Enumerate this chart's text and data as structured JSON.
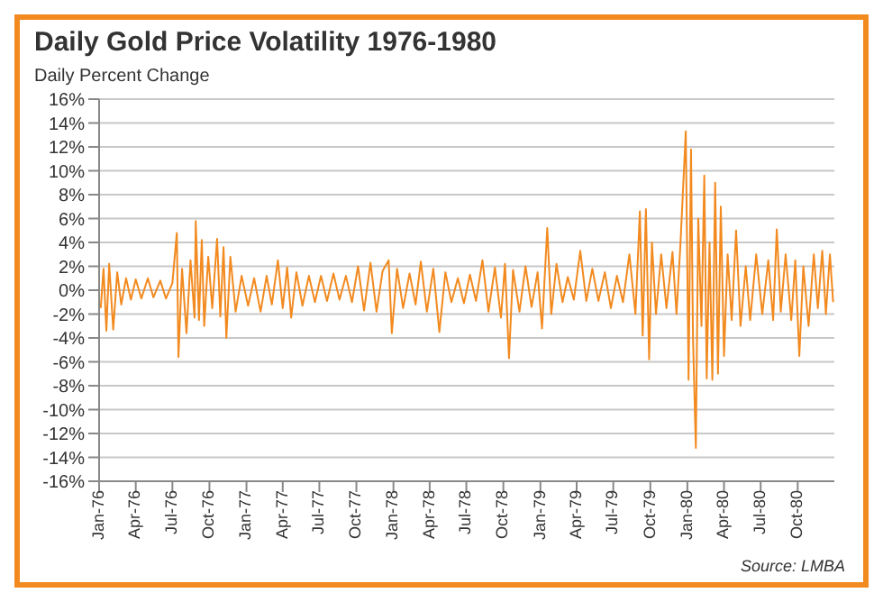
{
  "chart_data": {
    "type": "line",
    "title": "Daily Gold Price Volatility 1976-1980",
    "ylabel": "Daily Percent Change",
    "annotations": [
      "Source: LMBA"
    ],
    "grid": "y",
    "marker": "none",
    "line_style": "solid",
    "xlim": [
      "1976-01-01",
      "1980-12-31"
    ],
    "xticks": [
      {
        "value": "1976-01-01",
        "label": "Jan-76"
      },
      {
        "value": "1976-04-01",
        "label": "Apr-76"
      },
      {
        "value": "1976-07-01",
        "label": "Jul-76"
      },
      {
        "value": "1976-10-01",
        "label": "Oct-76"
      },
      {
        "value": "1977-01-01",
        "label": "Jan-77"
      },
      {
        "value": "1977-04-01",
        "label": "Apr-77"
      },
      {
        "value": "1977-07-01",
        "label": "Jul-77"
      },
      {
        "value": "1977-10-01",
        "label": "Oct-77"
      },
      {
        "value": "1978-01-01",
        "label": "Jan-78"
      },
      {
        "value": "1978-04-01",
        "label": "Apr-78"
      },
      {
        "value": "1978-07-01",
        "label": "Jul-78"
      },
      {
        "value": "1978-10-01",
        "label": "Oct-78"
      },
      {
        "value": "1979-01-01",
        "label": "Jan-79"
      },
      {
        "value": "1979-04-01",
        "label": "Apr-79"
      },
      {
        "value": "1979-07-01",
        "label": "Jul-79"
      },
      {
        "value": "1979-10-01",
        "label": "Oct-79"
      },
      {
        "value": "1980-01-01",
        "label": "Jan-80"
      },
      {
        "value": "1980-04-01",
        "label": "Apr-80"
      },
      {
        "value": "1980-07-01",
        "label": "Jul-80"
      },
      {
        "value": "1980-10-01",
        "label": "Oct-80"
      }
    ],
    "ylim": [
      -16,
      16
    ],
    "yticks": [
      {
        "value": -16,
        "label": "-16%"
      },
      {
        "value": -14,
        "label": "-14%"
      },
      {
        "value": -12,
        "label": "-12%"
      },
      {
        "value": -10,
        "label": "-10%"
      },
      {
        "value": -8,
        "label": "-8%"
      },
      {
        "value": -6,
        "label": "-6%"
      },
      {
        "value": -4,
        "label": "-4%"
      },
      {
        "value": -2,
        "label": "-2%"
      },
      {
        "value": 0,
        "label": "0%"
      },
      {
        "value": 2,
        "label": "2%"
      },
      {
        "value": 4,
        "label": "4%"
      },
      {
        "value": 6,
        "label": "6%"
      },
      {
        "value": 8,
        "label": "8%"
      },
      {
        "value": 10,
        "label": "10%"
      },
      {
        "value": 12,
        "label": "12%"
      },
      {
        "value": 14,
        "label": "14%"
      },
      {
        "value": 16,
        "label": "16%"
      }
    ],
    "x": [
      "1976-01-05",
      "1976-01-12",
      "1976-01-19",
      "1976-01-26",
      "1976-02-05",
      "1976-02-15",
      "1976-02-25",
      "1976-03-08",
      "1976-03-20",
      "1976-04-01",
      "1976-04-15",
      "1976-05-01",
      "1976-05-15",
      "1976-06-01",
      "1976-06-15",
      "1976-07-01",
      "1976-07-12",
      "1976-07-16",
      "1976-07-25",
      "1976-08-05",
      "1976-08-15",
      "1976-08-25",
      "1976-08-28",
      "1976-09-05",
      "1976-09-12",
      "1976-09-18",
      "1976-09-28",
      "1976-10-08",
      "1976-10-20",
      "1976-10-28",
      "1976-11-05",
      "1976-11-12",
      "1976-11-22",
      "1976-12-05",
      "1976-12-20",
      "1977-01-05",
      "1977-01-20",
      "1977-02-05",
      "1977-02-20",
      "1977-03-05",
      "1977-03-20",
      "1977-04-01",
      "1977-04-12",
      "1977-04-22",
      "1977-05-05",
      "1977-05-20",
      "1977-06-05",
      "1977-06-20",
      "1977-07-05",
      "1977-07-20",
      "1977-08-05",
      "1977-08-20",
      "1977-09-05",
      "1977-09-20",
      "1977-10-05",
      "1977-10-20",
      "1977-11-05",
      "1977-11-20",
      "1977-12-05",
      "1977-12-20",
      "1977-12-28",
      "1978-01-10",
      "1978-01-25",
      "1978-02-10",
      "1978-02-25",
      "1978-03-10",
      "1978-03-25",
      "1978-04-10",
      "1978-04-25",
      "1978-05-10",
      "1978-05-25",
      "1978-06-10",
      "1978-06-25",
      "1978-07-10",
      "1978-07-25",
      "1978-08-10",
      "1978-08-25",
      "1978-09-10",
      "1978-09-25",
      "1978-10-05",
      "1978-10-15",
      "1978-10-25",
      "1978-11-10",
      "1978-11-25",
      "1978-12-10",
      "1978-12-25",
      "1979-01-05",
      "1979-01-18",
      "1979-01-28",
      "1979-02-10",
      "1979-02-25",
      "1979-03-10",
      "1979-03-25",
      "1979-04-10",
      "1979-04-25",
      "1979-05-10",
      "1979-05-25",
      "1979-06-10",
      "1979-06-25",
      "1979-07-10",
      "1979-07-25",
      "1979-08-10",
      "1979-08-25",
      "1979-09-05",
      "1979-09-12",
      "1979-09-20",
      "1979-09-28",
      "1979-10-05",
      "1979-10-15",
      "1979-10-28",
      "1979-11-10",
      "1979-11-25",
      "1979-12-05",
      "1979-12-15",
      "1979-12-28",
      "1980-01-04",
      "1980-01-10",
      "1980-01-15",
      "1980-01-22",
      "1980-01-28",
      "1980-02-05",
      "1980-02-12",
      "1980-02-18",
      "1980-02-25",
      "1980-03-03",
      "1980-03-10",
      "1980-03-17",
      "1980-03-24",
      "1980-04-01",
      "1980-04-10",
      "1980-04-20",
      "1980-05-01",
      "1980-05-12",
      "1980-05-25",
      "1980-06-05",
      "1980-06-20",
      "1980-07-05",
      "1980-07-20",
      "1980-08-01",
      "1980-08-10",
      "1980-08-20",
      "1980-09-01",
      "1980-09-15",
      "1980-09-25",
      "1980-10-05",
      "1980-10-15",
      "1980-10-28",
      "1980-11-10",
      "1980-11-20",
      "1980-12-01",
      "1980-12-10",
      "1980-12-20",
      "1980-12-28"
    ],
    "series": [
      {
        "color": "#f28a1f",
        "values": [
          -1.5,
          1.8,
          -3.4,
          2.2,
          -3.3,
          1.5,
          -1.2,
          1.0,
          -0.8,
          0.9,
          -0.7,
          1.0,
          -0.6,
          0.8,
          -0.7,
          0.6,
          4.8,
          -5.6,
          1.8,
          -3.6,
          2.5,
          -2.3,
          5.8,
          -2.5,
          4.2,
          -3.0,
          2.8,
          -1.5,
          4.3,
          -2.2,
          3.6,
          -4.0,
          2.8,
          -1.8,
          1.2,
          -1.3,
          1.0,
          -1.8,
          1.2,
          -1.2,
          2.5,
          -1.5,
          1.9,
          -2.3,
          1.5,
          -1.3,
          1.2,
          -1.0,
          1.2,
          -0.9,
          1.4,
          -0.8,
          1.2,
          -1.0,
          2.0,
          -1.7,
          2.3,
          -1.8,
          1.6,
          2.5,
          -3.6,
          1.8,
          -1.5,
          1.4,
          -1.2,
          2.4,
          -1.8,
          1.8,
          -3.5,
          1.5,
          -1.0,
          1.0,
          -1.1,
          1.3,
          -0.9,
          2.5,
          -1.8,
          1.9,
          -2.3,
          2.2,
          -5.7,
          1.7,
          -1.8,
          2.0,
          -1.4,
          1.5,
          -3.2,
          5.2,
          -2.0,
          2.2,
          -1.0,
          1.1,
          -0.8,
          3.3,
          -0.9,
          1.8,
          -0.9,
          1.5,
          -1.5,
          1.2,
          -1.0,
          3.0,
          -2.0,
          6.6,
          -3.8,
          6.8,
          -5.8,
          4.0,
          -2.0,
          3.0,
          -1.5,
          3.2,
          -2.0,
          4.0,
          13.3,
          -7.5,
          11.8,
          -4.0,
          -13.2,
          6.0,
          -3.0,
          9.6,
          -7.4,
          4.0,
          -7.5,
          9.0,
          -7.0,
          7.0,
          -5.5,
          3.0,
          -2.5,
          5.0,
          -3.0,
          2.0,
          -2.5,
          3.0,
          -2.0,
          2.5,
          -2.5,
          5.1,
          -1.8,
          3.0,
          -2.5,
          2.5,
          -5.5,
          2.0,
          -3.0,
          3.0,
          -1.5,
          3.3,
          -2.0,
          3.0,
          -1.0
        ]
      }
    ]
  }
}
